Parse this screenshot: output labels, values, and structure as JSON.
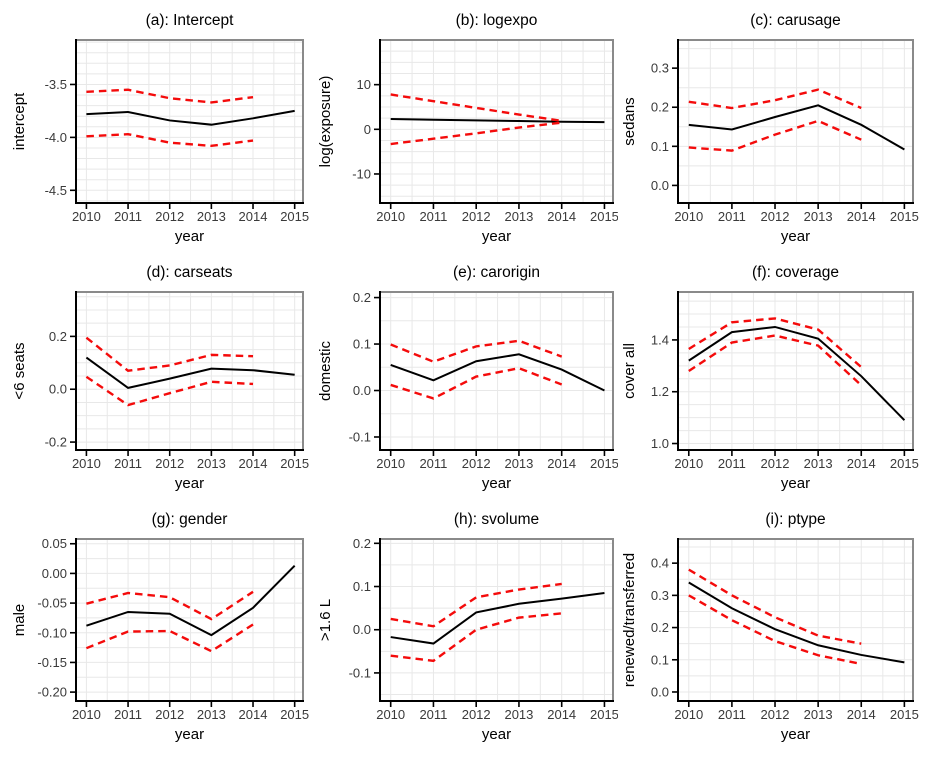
{
  "colors": {
    "estimate_line": "#000000",
    "confidence_band": "#f40b0b",
    "gridline": "#e8e8e8",
    "panel_border": "#8a8a8a",
    "axis_line": "#000000",
    "tick_label": "#3a3a3a",
    "title_text": "#000000",
    "background": "#ffffff"
  },
  "chart_data": [
    {
      "id": "a",
      "type": "line",
      "title": "(a): Intercept",
      "ylabel": "intercept",
      "xlabel": "year",
      "xlim": [
        2009.75,
        2015.2
      ],
      "ylim": [
        -4.62,
        -3.08
      ],
      "grid_step_x": 0.5,
      "grid_step_y": 0.1,
      "xticks": [
        2010,
        2011,
        2012,
        2013,
        2014,
        2015
      ],
      "xtick_labels": [
        "2010",
        "2011",
        "2012",
        "2013",
        "2014",
        "2015"
      ],
      "yticks": [
        -4.5,
        -4.0,
        -3.5
      ],
      "ytick_labels": [
        "-4.5",
        "-4.0",
        "-3.5"
      ],
      "series": [
        {
          "name": "estimate",
          "color": "black",
          "style": "solid",
          "x": [
            2010,
            2011,
            2012,
            2013,
            2014,
            2015
          ],
          "values": [
            -3.78,
            -3.76,
            -3.84,
            -3.88,
            -3.82,
            -3.75
          ]
        },
        {
          "name": "upper-ci",
          "color": "red",
          "style": "dashed",
          "x": [
            2010,
            2011,
            2012,
            2013,
            2014
          ],
          "values": [
            -3.57,
            -3.55,
            -3.63,
            -3.67,
            -3.62
          ]
        },
        {
          "name": "lower-ci",
          "color": "red",
          "style": "dashed",
          "x": [
            2010,
            2011,
            2012,
            2013,
            2014
          ],
          "values": [
            -3.99,
            -3.97,
            -4.05,
            -4.08,
            -4.03
          ]
        }
      ]
    },
    {
      "id": "b",
      "type": "line",
      "title": "(b): logexpo",
      "ylabel": "log(exposure)",
      "xlabel": "year",
      "xlim": [
        2009.75,
        2015.2
      ],
      "ylim": [
        -16.5,
        20
      ],
      "grid_step_x": 0.5,
      "grid_step_y": 2.5,
      "xticks": [
        2010,
        2011,
        2012,
        2013,
        2014,
        2015
      ],
      "xtick_labels": [
        "2010",
        "2011",
        "2012",
        "2013",
        "2014",
        "2015"
      ],
      "yticks": [
        -10,
        0,
        10
      ],
      "ytick_labels": [
        "-10",
        "0",
        "10"
      ],
      "series": [
        {
          "name": "estimate",
          "color": "black",
          "style": "solid",
          "x": [
            2010,
            2011,
            2012,
            2013,
            2014,
            2015
          ],
          "values": [
            2.3,
            2.15,
            2.0,
            1.85,
            1.7,
            1.6
          ]
        },
        {
          "name": "upper-ci",
          "color": "red",
          "style": "dashed",
          "x": [
            2010,
            2011,
            2012,
            2013,
            2014
          ],
          "values": [
            7.8,
            6.3,
            4.8,
            3.3,
            1.9
          ]
        },
        {
          "name": "lower-ci",
          "color": "red",
          "style": "dashed",
          "x": [
            2010,
            2011,
            2012,
            2013,
            2014
          ],
          "values": [
            -3.3,
            -2.1,
            -0.9,
            0.4,
            1.5
          ]
        }
      ]
    },
    {
      "id": "c",
      "type": "line",
      "title": "(c): carusage",
      "ylabel": "sedans",
      "xlabel": "year",
      "xlim": [
        2009.75,
        2015.2
      ],
      "ylim": [
        -0.045,
        0.372
      ],
      "grid_step_x": 0.5,
      "grid_step_y": 0.05,
      "xticks": [
        2010,
        2011,
        2012,
        2013,
        2014,
        2015
      ],
      "xtick_labels": [
        "2010",
        "2011",
        "2012",
        "2013",
        "2014",
        "2015"
      ],
      "yticks": [
        0.0,
        0.1,
        0.2,
        0.3
      ],
      "ytick_labels": [
        "0.0",
        "0.1",
        "0.2",
        "0.3"
      ],
      "series": [
        {
          "name": "estimate",
          "color": "black",
          "style": "solid",
          "x": [
            2010,
            2011,
            2012,
            2013,
            2014,
            2015
          ],
          "values": [
            0.155,
            0.143,
            0.175,
            0.205,
            0.155,
            0.092
          ]
        },
        {
          "name": "upper-ci",
          "color": "red",
          "style": "dashed",
          "x": [
            2010,
            2011,
            2012,
            2013,
            2014
          ],
          "values": [
            0.214,
            0.198,
            0.218,
            0.245,
            0.198
          ]
        },
        {
          "name": "lower-ci",
          "color": "red",
          "style": "dashed",
          "x": [
            2010,
            2011,
            2012,
            2013,
            2014
          ],
          "values": [
            0.097,
            0.089,
            0.13,
            0.165,
            0.117
          ]
        }
      ]
    },
    {
      "id": "d",
      "type": "line",
      "title": "(d): carseats",
      "ylabel": "<6 seats",
      "xlabel": "year",
      "xlim": [
        2009.75,
        2015.2
      ],
      "ylim": [
        -0.23,
        0.368
      ],
      "grid_step_x": 0.5,
      "grid_step_y": 0.05,
      "xticks": [
        2010,
        2011,
        2012,
        2013,
        2014,
        2015
      ],
      "xtick_labels": [
        "2010",
        "2011",
        "2012",
        "2013",
        "2014",
        "2015"
      ],
      "yticks": [
        -0.2,
        0.0,
        0.2
      ],
      "ytick_labels": [
        "-0.2",
        "0.0",
        "0.2"
      ],
      "series": [
        {
          "name": "estimate",
          "color": "black",
          "style": "solid",
          "x": [
            2010,
            2011,
            2012,
            2013,
            2014,
            2015
          ],
          "values": [
            0.12,
            0.005,
            0.04,
            0.078,
            0.072,
            0.055
          ]
        },
        {
          "name": "upper-ci",
          "color": "red",
          "style": "dashed",
          "x": [
            2010,
            2011,
            2012,
            2013,
            2014
          ],
          "values": [
            0.195,
            0.07,
            0.09,
            0.13,
            0.125
          ]
        },
        {
          "name": "lower-ci",
          "color": "red",
          "style": "dashed",
          "x": [
            2010,
            2011,
            2012,
            2013,
            2014
          ],
          "values": [
            0.047,
            -0.06,
            -0.015,
            0.028,
            0.02
          ]
        }
      ]
    },
    {
      "id": "e",
      "type": "line",
      "title": "(e): carorigin",
      "ylabel": "domestic",
      "xlabel": "year",
      "xlim": [
        2009.75,
        2015.2
      ],
      "ylim": [
        -0.128,
        0.212
      ],
      "grid_step_x": 0.5,
      "grid_step_y": 0.05,
      "xticks": [
        2010,
        2011,
        2012,
        2013,
        2014,
        2015
      ],
      "xtick_labels": [
        "2010",
        "2011",
        "2012",
        "2013",
        "2014",
        "2015"
      ],
      "yticks": [
        -0.1,
        0.0,
        0.1,
        0.2
      ],
      "ytick_labels": [
        "-0.1",
        "0.0",
        "0.1",
        "0.2"
      ],
      "series": [
        {
          "name": "estimate",
          "color": "black",
          "style": "solid",
          "x": [
            2010,
            2011,
            2012,
            2013,
            2014,
            2015
          ],
          "values": [
            0.055,
            0.022,
            0.063,
            0.078,
            0.045,
            0.0
          ]
        },
        {
          "name": "upper-ci",
          "color": "red",
          "style": "dashed",
          "x": [
            2010,
            2011,
            2012,
            2013,
            2014
          ],
          "values": [
            0.099,
            0.062,
            0.095,
            0.107,
            0.073
          ]
        },
        {
          "name": "lower-ci",
          "color": "red",
          "style": "dashed",
          "x": [
            2010,
            2011,
            2012,
            2013,
            2014
          ],
          "values": [
            0.012,
            -0.017,
            0.03,
            0.048,
            0.013
          ]
        }
      ]
    },
    {
      "id": "f",
      "type": "line",
      "title": "(f): coverage",
      "ylabel": "cover all",
      "xlabel": "year",
      "xlim": [
        2009.75,
        2015.2
      ],
      "ylim": [
        0.975,
        1.585
      ],
      "grid_step_x": 0.5,
      "grid_step_y": 0.05,
      "xticks": [
        2010,
        2011,
        2012,
        2013,
        2014,
        2015
      ],
      "xtick_labels": [
        "2010",
        "2011",
        "2012",
        "2013",
        "2014",
        "2015"
      ],
      "yticks": [
        1.0,
        1.2,
        1.4
      ],
      "ytick_labels": [
        "1.0",
        "1.2",
        "1.4"
      ],
      "series": [
        {
          "name": "estimate",
          "color": "black",
          "style": "solid",
          "x": [
            2010,
            2011,
            2012,
            2013,
            2014,
            2015
          ],
          "values": [
            1.32,
            1.43,
            1.45,
            1.405,
            1.26,
            1.09
          ]
        },
        {
          "name": "upper-ci",
          "color": "red",
          "style": "dashed",
          "x": [
            2010,
            2011,
            2012,
            2013,
            2014
          ],
          "values": [
            1.365,
            1.468,
            1.483,
            1.44,
            1.295
          ]
        },
        {
          "name": "lower-ci",
          "color": "red",
          "style": "dashed",
          "x": [
            2010,
            2011,
            2012,
            2013,
            2014
          ],
          "values": [
            1.28,
            1.39,
            1.417,
            1.378,
            1.225
          ]
        }
      ]
    },
    {
      "id": "g",
      "type": "line",
      "title": "(g): gender",
      "ylabel": "male",
      "xlabel": "year",
      "xlim": [
        2009.75,
        2015.2
      ],
      "ylim": [
        -0.215,
        0.058
      ],
      "grid_step_x": 0.5,
      "grid_step_y": 0.025,
      "xticks": [
        2010,
        2011,
        2012,
        2013,
        2014,
        2015
      ],
      "xtick_labels": [
        "2010",
        "2011",
        "2012",
        "2013",
        "2014",
        "2015"
      ],
      "yticks": [
        -0.2,
        -0.15,
        -0.1,
        -0.05,
        0.0,
        0.05
      ],
      "ytick_labels": [
        "-0.20",
        "-0.15",
        "-0.10",
        "-0.05",
        "0.00",
        "0.05"
      ],
      "series": [
        {
          "name": "estimate",
          "color": "black",
          "style": "solid",
          "x": [
            2010,
            2011,
            2012,
            2013,
            2014,
            2015
          ],
          "values": [
            -0.088,
            -0.065,
            -0.068,
            -0.104,
            -0.058,
            0.013
          ]
        },
        {
          "name": "upper-ci",
          "color": "red",
          "style": "dashed",
          "x": [
            2010,
            2011,
            2012,
            2013,
            2014
          ],
          "values": [
            -0.051,
            -0.033,
            -0.04,
            -0.077,
            -0.031
          ]
        },
        {
          "name": "lower-ci",
          "color": "red",
          "style": "dashed",
          "x": [
            2010,
            2011,
            2012,
            2013,
            2014
          ],
          "values": [
            -0.126,
            -0.098,
            -0.097,
            -0.131,
            -0.086
          ]
        }
      ]
    },
    {
      "id": "h",
      "type": "line",
      "title": "(h): svolume",
      "ylabel": ">1.6 L",
      "xlabel": "year",
      "xlim": [
        2009.75,
        2015.2
      ],
      "ylim": [
        -0.165,
        0.21
      ],
      "grid_step_x": 0.5,
      "grid_step_y": 0.05,
      "xticks": [
        2010,
        2011,
        2012,
        2013,
        2014,
        2015
      ],
      "xtick_labels": [
        "2010",
        "2011",
        "2012",
        "2013",
        "2014",
        "2015"
      ],
      "yticks": [
        -0.1,
        0.0,
        0.1,
        0.2
      ],
      "ytick_labels": [
        "-0.1",
        "0.0",
        "0.1",
        "0.2"
      ],
      "series": [
        {
          "name": "estimate",
          "color": "black",
          "style": "solid",
          "x": [
            2010,
            2011,
            2012,
            2013,
            2014,
            2015
          ],
          "values": [
            -0.017,
            -0.032,
            0.04,
            0.06,
            0.072,
            0.085
          ]
        },
        {
          "name": "upper-ci",
          "color": "red",
          "style": "dashed",
          "x": [
            2010,
            2011,
            2012,
            2013,
            2014
          ],
          "values": [
            0.025,
            0.008,
            0.075,
            0.093,
            0.106
          ]
        },
        {
          "name": "lower-ci",
          "color": "red",
          "style": "dashed",
          "x": [
            2010,
            2011,
            2012,
            2013,
            2014
          ],
          "values": [
            -0.06,
            -0.072,
            0.0,
            0.028,
            0.038
          ]
        }
      ]
    },
    {
      "id": "i",
      "type": "line",
      "title": "(i): ptype",
      "ylabel": "renewed/transferred",
      "xlabel": "year",
      "xlim": [
        2009.75,
        2015.2
      ],
      "ylim": [
        -0.028,
        0.475
      ],
      "grid_step_x": 0.5,
      "grid_step_y": 0.05,
      "xticks": [
        2010,
        2011,
        2012,
        2013,
        2014,
        2015
      ],
      "xtick_labels": [
        "2010",
        "2011",
        "2012",
        "2013",
        "2014",
        "2015"
      ],
      "yticks": [
        0.0,
        0.1,
        0.2,
        0.3,
        0.4
      ],
      "ytick_labels": [
        "0.0",
        "0.1",
        "0.2",
        "0.3",
        "0.4"
      ],
      "series": [
        {
          "name": "estimate",
          "color": "black",
          "style": "solid",
          "x": [
            2010,
            2011,
            2012,
            2013,
            2014,
            2015
          ],
          "values": [
            0.34,
            0.26,
            0.195,
            0.145,
            0.115,
            0.092
          ]
        },
        {
          "name": "upper-ci",
          "color": "red",
          "style": "dashed",
          "x": [
            2010,
            2011,
            2012,
            2013,
            2014
          ],
          "values": [
            0.38,
            0.3,
            0.232,
            0.175,
            0.15
          ]
        },
        {
          "name": "lower-ci",
          "color": "red",
          "style": "dashed",
          "x": [
            2010,
            2011,
            2012,
            2013,
            2014
          ],
          "values": [
            0.3,
            0.223,
            0.158,
            0.114,
            0.087
          ]
        }
      ]
    }
  ]
}
